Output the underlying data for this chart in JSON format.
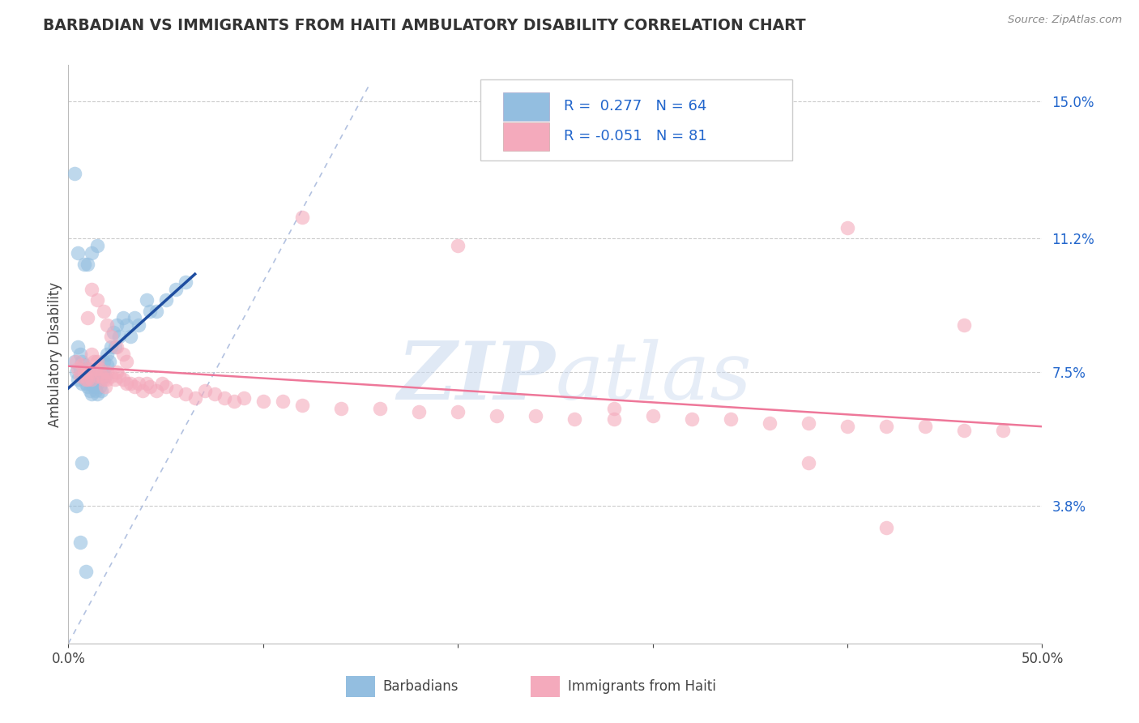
{
  "title": "BARBADIAN VS IMMIGRANTS FROM HAITI AMBULATORY DISABILITY CORRELATION CHART",
  "source": "Source: ZipAtlas.com",
  "ylabel": "Ambulatory Disability",
  "xlim": [
    0.0,
    0.5
  ],
  "ylim": [
    0.0,
    0.16
  ],
  "xtick_positions": [
    0.0,
    0.1,
    0.2,
    0.3,
    0.4,
    0.5
  ],
  "xtick_labels": [
    "0.0%",
    "",
    "",
    "",
    "",
    "50.0%"
  ],
  "ytick_positions": [
    0.038,
    0.075,
    0.112,
    0.15
  ],
  "ytick_labels": [
    "3.8%",
    "7.5%",
    "11.2%",
    "15.0%"
  ],
  "r1": "0.277",
  "n1": "64",
  "r2": "-0.051",
  "n2": "81",
  "blue_dot_color": "#93BEE0",
  "pink_dot_color": "#F4AABC",
  "blue_line_color": "#1E4DA0",
  "pink_line_color": "#EE7799",
  "diag_color": "#AABBDD",
  "legend_text_color": "#2266CC",
  "watermark_zip": "ZIP",
  "watermark_atlas": "atlas",
  "bottom_legend_blue": "Barbadians",
  "bottom_legend_pink": "Immigrants from Haiti",
  "blue_x": [
    0.003,
    0.004,
    0.005,
    0.005,
    0.006,
    0.006,
    0.007,
    0.007,
    0.007,
    0.008,
    0.008,
    0.009,
    0.009,
    0.01,
    0.01,
    0.01,
    0.011,
    0.011,
    0.011,
    0.012,
    0.012,
    0.012,
    0.013,
    0.013,
    0.014,
    0.014,
    0.015,
    0.015,
    0.016,
    0.016,
    0.017,
    0.017,
    0.018,
    0.018,
    0.019,
    0.02,
    0.02,
    0.021,
    0.022,
    0.023,
    0.024,
    0.025,
    0.026,
    0.028,
    0.03,
    0.032,
    0.034,
    0.036,
    0.04,
    0.042,
    0.045,
    0.05,
    0.055,
    0.06,
    0.003,
    0.005,
    0.008,
    0.01,
    0.012,
    0.015,
    0.007,
    0.004,
    0.006,
    0.009
  ],
  "blue_y": [
    0.078,
    0.075,
    0.082,
    0.073,
    0.08,
    0.076,
    0.078,
    0.074,
    0.072,
    0.077,
    0.075,
    0.074,
    0.072,
    0.076,
    0.073,
    0.071,
    0.075,
    0.073,
    0.07,
    0.074,
    0.072,
    0.069,
    0.073,
    0.071,
    0.072,
    0.07,
    0.072,
    0.069,
    0.074,
    0.071,
    0.073,
    0.07,
    0.078,
    0.075,
    0.074,
    0.08,
    0.077,
    0.078,
    0.082,
    0.086,
    0.082,
    0.088,
    0.085,
    0.09,
    0.088,
    0.085,
    0.09,
    0.088,
    0.095,
    0.092,
    0.092,
    0.095,
    0.098,
    0.1,
    0.13,
    0.108,
    0.105,
    0.105,
    0.108,
    0.11,
    0.05,
    0.038,
    0.028,
    0.02
  ],
  "pink_x": [
    0.004,
    0.005,
    0.006,
    0.007,
    0.008,
    0.009,
    0.01,
    0.01,
    0.011,
    0.012,
    0.012,
    0.013,
    0.014,
    0.015,
    0.015,
    0.016,
    0.017,
    0.018,
    0.019,
    0.02,
    0.02,
    0.022,
    0.024,
    0.025,
    0.026,
    0.028,
    0.03,
    0.032,
    0.034,
    0.036,
    0.038,
    0.04,
    0.042,
    0.045,
    0.048,
    0.05,
    0.055,
    0.06,
    0.065,
    0.07,
    0.075,
    0.08,
    0.085,
    0.09,
    0.1,
    0.11,
    0.12,
    0.14,
    0.16,
    0.18,
    0.2,
    0.22,
    0.24,
    0.26,
    0.28,
    0.3,
    0.32,
    0.34,
    0.36,
    0.38,
    0.4,
    0.42,
    0.44,
    0.46,
    0.48,
    0.01,
    0.012,
    0.015,
    0.018,
    0.02,
    0.022,
    0.025,
    0.028,
    0.03,
    0.12,
    0.28,
    0.38,
    0.4,
    0.46,
    0.42,
    0.2
  ],
  "pink_y": [
    0.078,
    0.076,
    0.074,
    0.077,
    0.075,
    0.073,
    0.076,
    0.073,
    0.075,
    0.073,
    0.08,
    0.078,
    0.076,
    0.078,
    0.074,
    0.076,
    0.074,
    0.073,
    0.071,
    0.075,
    0.073,
    0.074,
    0.073,
    0.075,
    0.074,
    0.073,
    0.072,
    0.072,
    0.071,
    0.072,
    0.07,
    0.072,
    0.071,
    0.07,
    0.072,
    0.071,
    0.07,
    0.069,
    0.068,
    0.07,
    0.069,
    0.068,
    0.067,
    0.068,
    0.067,
    0.067,
    0.066,
    0.065,
    0.065,
    0.064,
    0.064,
    0.063,
    0.063,
    0.062,
    0.062,
    0.063,
    0.062,
    0.062,
    0.061,
    0.061,
    0.06,
    0.06,
    0.06,
    0.059,
    0.059,
    0.09,
    0.098,
    0.095,
    0.092,
    0.088,
    0.085,
    0.082,
    0.08,
    0.078,
    0.118,
    0.065,
    0.05,
    0.115,
    0.088,
    0.032,
    0.11
  ]
}
